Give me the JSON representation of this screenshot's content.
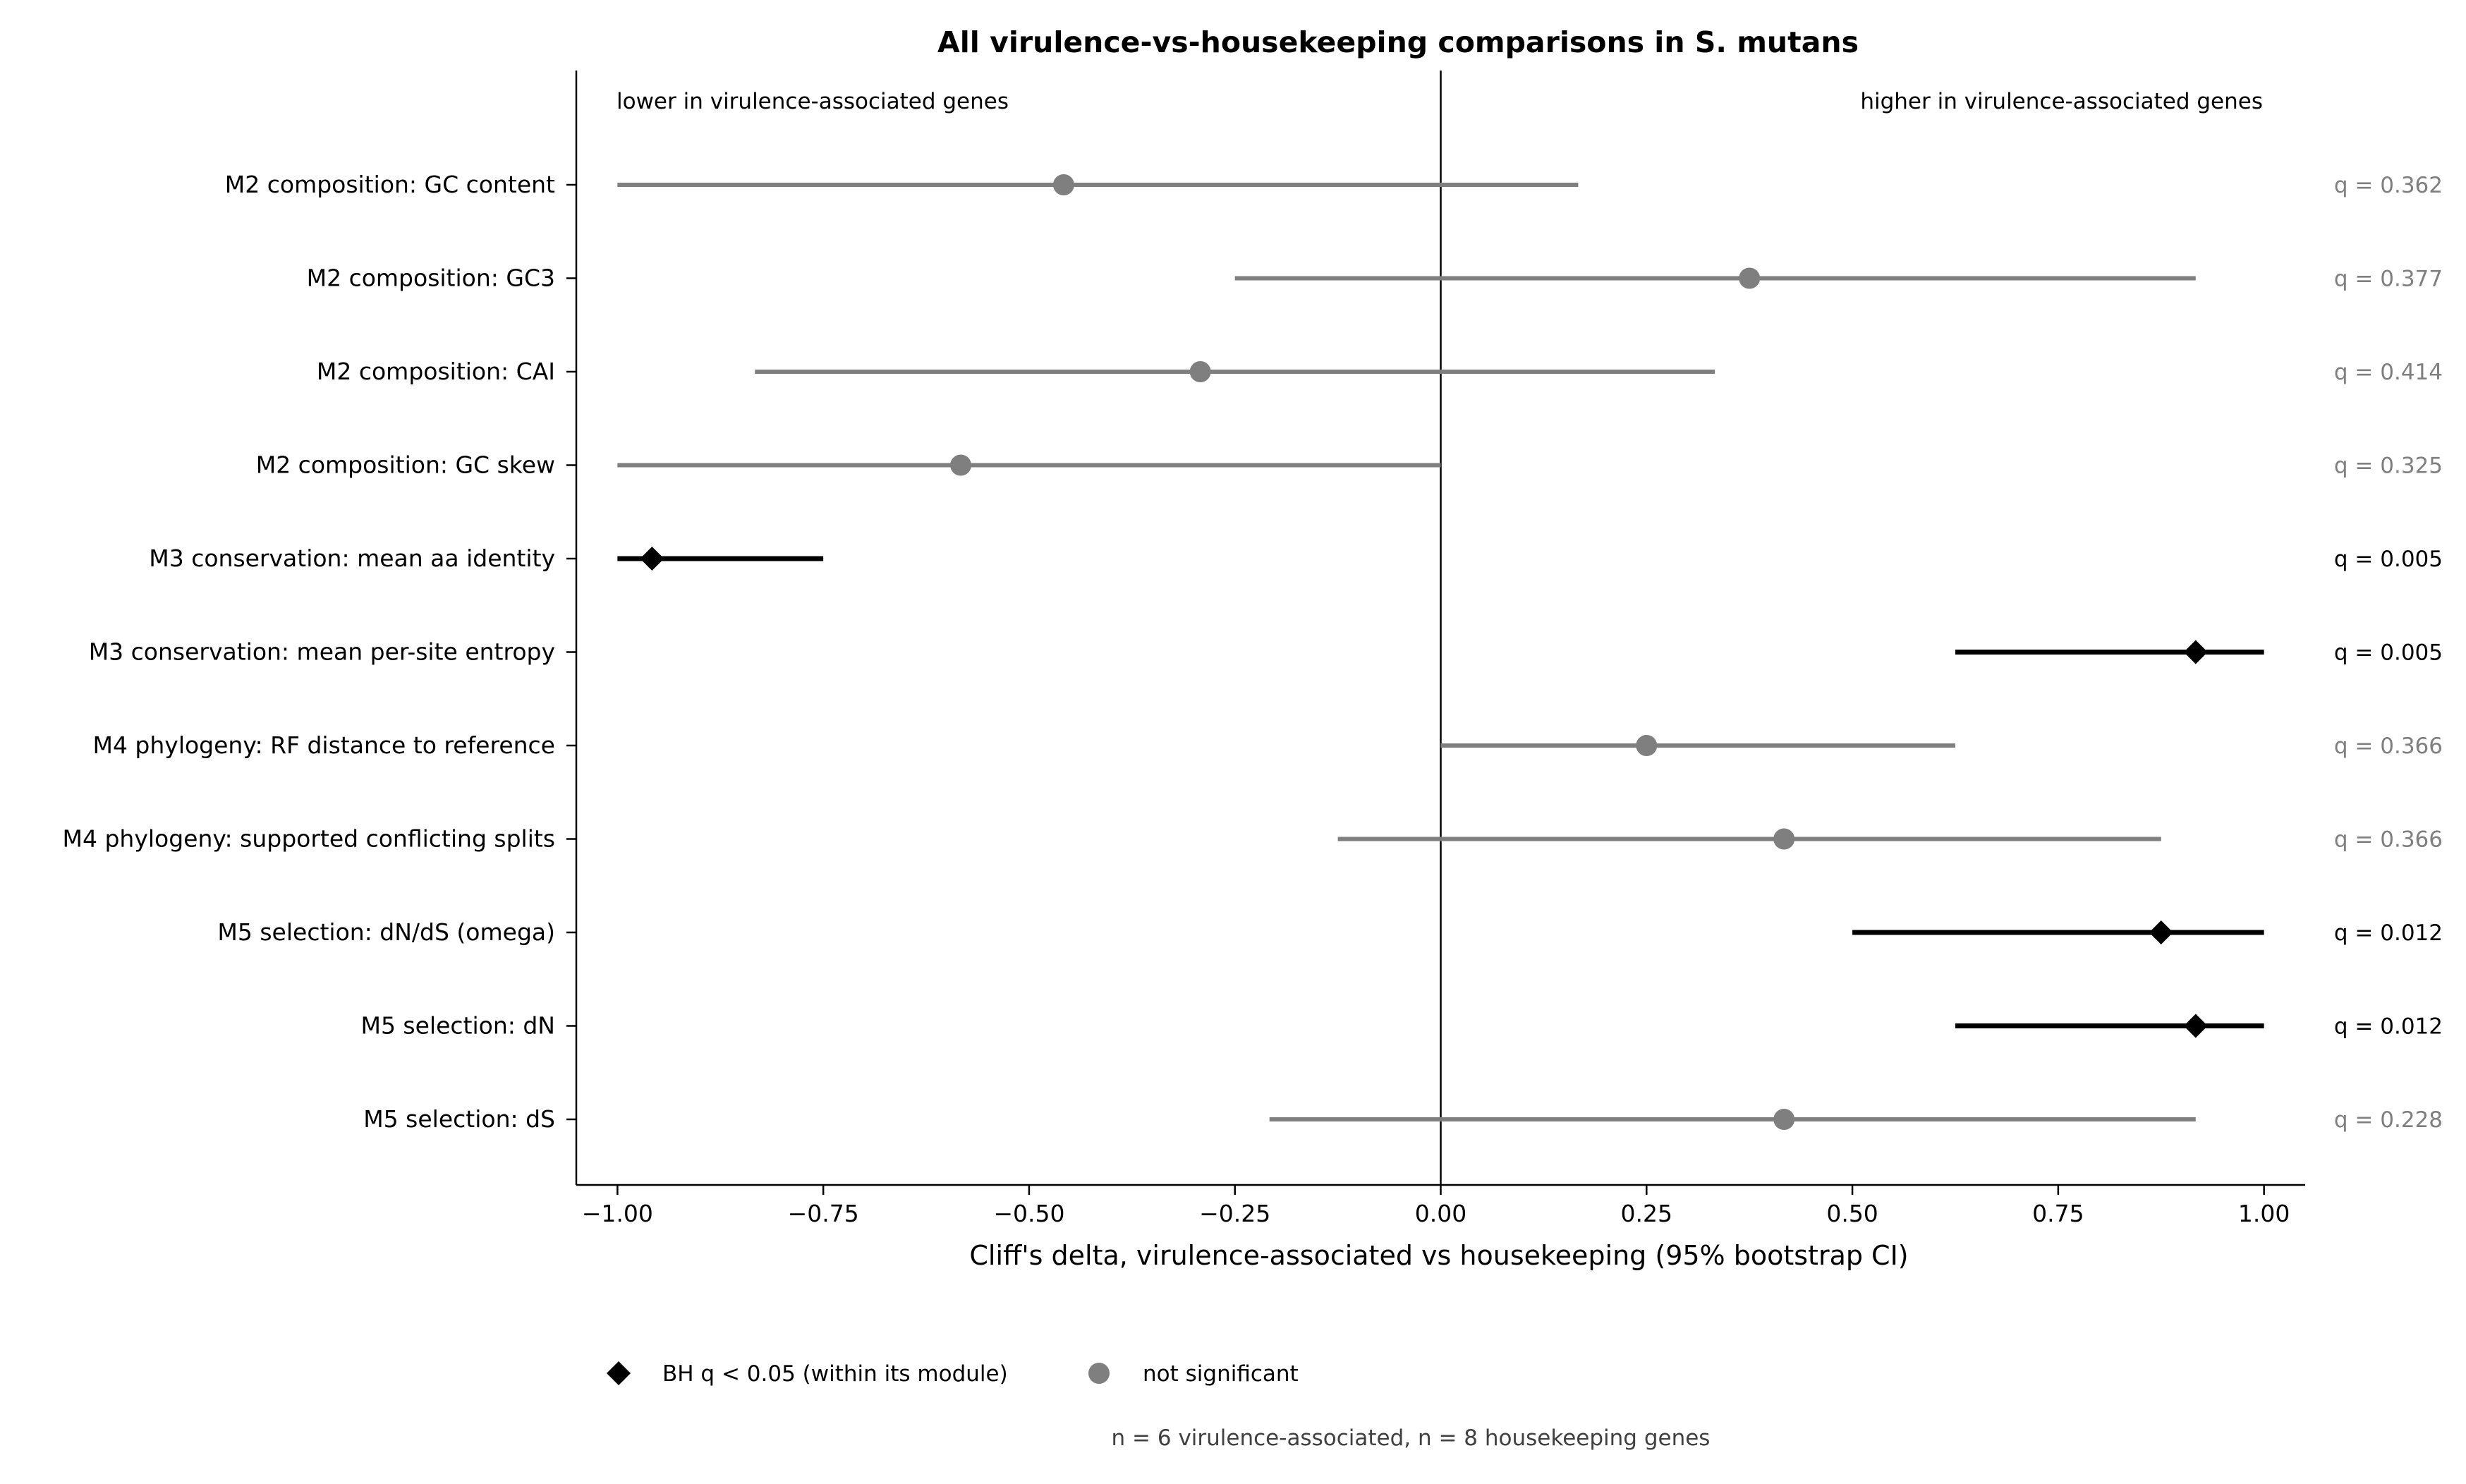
{
  "chart_data": {
    "type": "forest",
    "title": "All virulence-vs-housekeeping comparisons in S. mutans",
    "xlabel": "Cliff's delta, virulence-associated vs housekeeping (95% bootstrap CI)",
    "ylabel": "",
    "xlim": [
      -1.05,
      1.05
    ],
    "xticks": [
      -1.0,
      -0.75,
      -0.5,
      -0.25,
      0.0,
      0.25,
      0.5,
      0.75,
      1.0
    ],
    "xtick_labels": [
      "−1.00",
      "−0.75",
      "−0.50",
      "−0.25",
      "0.00",
      "0.25",
      "0.50",
      "0.75",
      "1.00"
    ],
    "reference_line": 0.0,
    "annotation_left": "lower in virulence-associated genes",
    "annotation_right": "higher in virulence-associated genes",
    "rows": [
      {
        "label": "M2 composition: GC content",
        "delta": -0.458,
        "ci": [
          -1.0,
          0.167
        ],
        "q_label": "q = 0.362",
        "significant": false
      },
      {
        "label": "M2 composition: GC3",
        "delta": 0.375,
        "ci": [
          -0.25,
          0.917
        ],
        "q_label": "q = 0.377",
        "significant": false
      },
      {
        "label": "M2 composition: CAI",
        "delta": -0.292,
        "ci": [
          -0.833,
          0.333
        ],
        "q_label": "q = 0.414",
        "significant": false
      },
      {
        "label": "M2 composition: GC skew",
        "delta": -0.583,
        "ci": [
          -1.0,
          0.0
        ],
        "q_label": "q = 0.325",
        "significant": false
      },
      {
        "label": "M3 conservation: mean aa identity",
        "delta": -0.958,
        "ci": [
          -1.0,
          -0.75
        ],
        "q_label": "q = 0.005",
        "significant": true
      },
      {
        "label": "M3 conservation: mean per-site entropy",
        "delta": 0.917,
        "ci": [
          0.625,
          1.0
        ],
        "q_label": "q = 0.005",
        "significant": true
      },
      {
        "label": "M4 phylogeny: RF distance to reference",
        "delta": 0.25,
        "ci": [
          0.0,
          0.625
        ],
        "q_label": "q = 0.366",
        "significant": false
      },
      {
        "label": "M4 phylogeny: supported conflicting splits",
        "delta": 0.417,
        "ci": [
          -0.125,
          0.875
        ],
        "q_label": "q = 0.366",
        "significant": false
      },
      {
        "label": "M5 selection: dN/dS (omega)",
        "delta": 0.875,
        "ci": [
          0.5,
          1.0
        ],
        "q_label": "q = 0.012",
        "significant": true
      },
      {
        "label": "M5 selection: dN",
        "delta": 0.917,
        "ci": [
          0.625,
          1.0
        ],
        "q_label": "q = 0.012",
        "significant": true
      },
      {
        "label": "M5 selection: dS",
        "delta": 0.417,
        "ci": [
          -0.208,
          0.917
        ],
        "q_label": "q = 0.228",
        "significant": false
      }
    ],
    "legend": [
      {
        "marker": "diamond",
        "label": "BH q < 0.05 (within its module)",
        "color": "#000000"
      },
      {
        "marker": "circle",
        "label": "not significant",
        "color": "#7f7f7f"
      }
    ],
    "legend_placement": "bottom",
    "footnote": "n = 6 virulence-associated, n = 8 housekeeping genes",
    "colors": {
      "significant": "#000000",
      "not_significant": "#7f7f7f",
      "footnote": "#404040"
    },
    "grid": false
  }
}
